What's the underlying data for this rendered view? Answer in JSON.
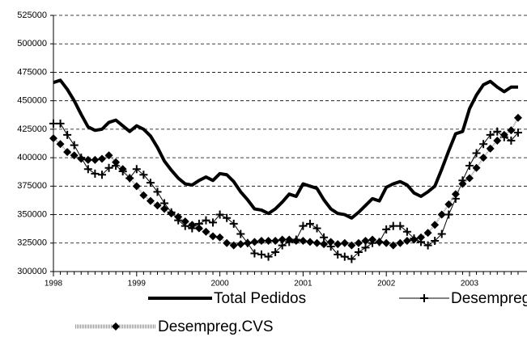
{
  "chart_data": {
    "type": "line",
    "categories": [
      "1998",
      null,
      null,
      null,
      null,
      null,
      null,
      null,
      null,
      null,
      null,
      null,
      "1999",
      null,
      null,
      null,
      null,
      null,
      null,
      null,
      null,
      null,
      null,
      null,
      "2000",
      null,
      null,
      null,
      null,
      null,
      null,
      null,
      null,
      null,
      null,
      null,
      "2001",
      null,
      null,
      null,
      null,
      null,
      null,
      null,
      null,
      null,
      null,
      null,
      "2002",
      null,
      null,
      null,
      null,
      null,
      null,
      null,
      null,
      null,
      null,
      null,
      "2003",
      null,
      null,
      null,
      null,
      null,
      null,
      null
    ],
    "series": [
      {
        "name": "Total Pedidos",
        "color": "#000000",
        "marker": "none",
        "line_width": 4,
        "dashed": false,
        "values": [
          466000,
          468000,
          460000,
          450000,
          438000,
          427000,
          424000,
          425000,
          431000,
          433000,
          428000,
          423000,
          428000,
          425000,
          419000,
          409000,
          397000,
          389000,
          382000,
          377000,
          376000,
          380000,
          383000,
          380000,
          386000,
          385000,
          379000,
          370000,
          363000,
          355000,
          354000,
          351000,
          355000,
          361000,
          368000,
          366000,
          377000,
          375000,
          373000,
          363000,
          355000,
          351000,
          350000,
          347000,
          352000,
          358000,
          364000,
          362000,
          374000,
          377000,
          379000,
          376000,
          369000,
          366000,
          370000,
          375000,
          390000,
          406000,
          421000,
          423000,
          443000,
          455000,
          464000,
          467000,
          462000,
          458000,
          462000,
          462000
        ]
      },
      {
        "name": "Desempregados",
        "color": "#000000",
        "marker": "cross",
        "line_width": 1,
        "dashed": false,
        "values": [
          430000,
          430000,
          420000,
          411000,
          400000,
          390000,
          386000,
          385000,
          391000,
          393000,
          388000,
          382000,
          390000,
          385000,
          378000,
          370000,
          360000,
          352000,
          345000,
          340000,
          338000,
          342000,
          345000,
          343000,
          350000,
          347000,
          342000,
          333000,
          325000,
          316000,
          315000,
          313000,
          317000,
          323000,
          326000,
          328000,
          340000,
          342000,
          338000,
          330000,
          322000,
          315000,
          313000,
          311000,
          317000,
          321000,
          325000,
          326000,
          337000,
          340000,
          340000,
          335000,
          329000,
          326000,
          323000,
          327000,
          333000,
          350000,
          364000,
          380000,
          393000,
          404000,
          412000,
          420000,
          423000,
          418000,
          415000,
          422000
        ]
      },
      {
        "name": "Desempreg.CVS",
        "color": "#000000",
        "marker": "diamond",
        "line_width": 2,
        "dashed": true,
        "values": [
          417000,
          412000,
          405000,
          402000,
          399000,
          398000,
          398000,
          399000,
          402000,
          396000,
          390000,
          382000,
          375000,
          367000,
          362000,
          358000,
          355000,
          351000,
          348000,
          344000,
          341000,
          338000,
          335000,
          331000,
          330000,
          325000,
          323000,
          324000,
          325000,
          326000,
          327000,
          327000,
          327000,
          328000,
          328000,
          327000,
          327000,
          326000,
          325000,
          324000,
          326000,
          324000,
          325000,
          323000,
          325000,
          327000,
          328000,
          326000,
          325000,
          323000,
          325000,
          327000,
          328000,
          330000,
          334000,
          341000,
          350000,
          359000,
          368000,
          377000,
          382000,
          391000,
          400000,
          408000,
          415000,
          420000,
          424000,
          435000
        ]
      }
    ],
    "ylim": [
      300000,
      525000
    ],
    "yticks": [
      300000,
      325000,
      350000,
      375000,
      400000,
      425000,
      450000,
      475000,
      500000,
      525000
    ],
    "grid": true
  }
}
